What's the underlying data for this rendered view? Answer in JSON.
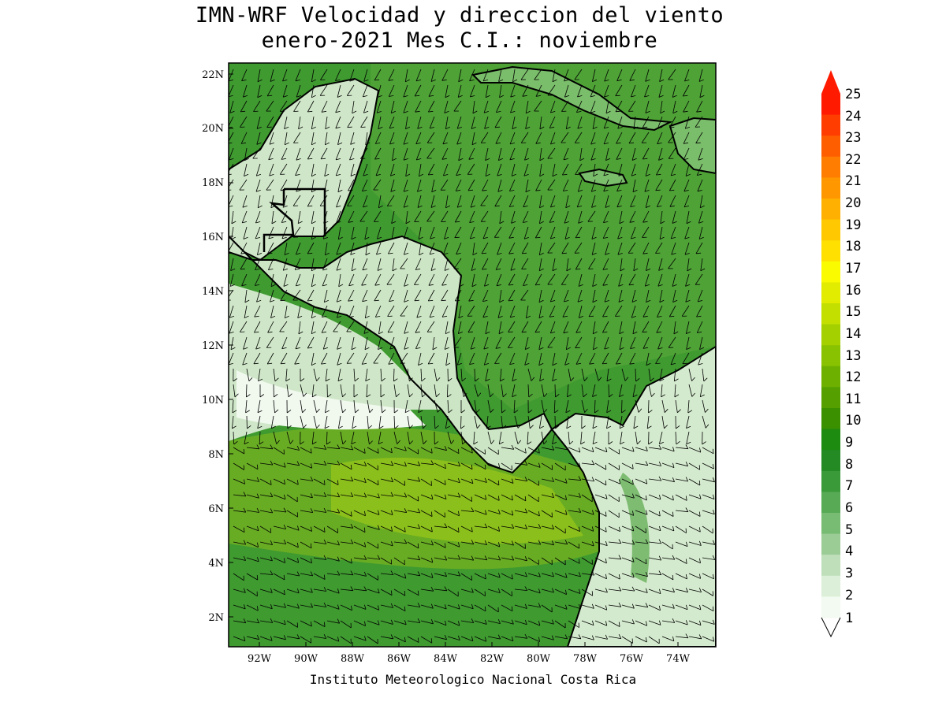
{
  "title_line1": "IMN-WRF Velocidad y direccion del viento",
  "title_line2": "enero-2021 Mes C.I.: noviembre",
  "credit": "Instituto Meteorologico Nacional Costa Rica",
  "map": {
    "lat_ticks": [
      "22N",
      "20N",
      "18N",
      "16N",
      "14N",
      "12N",
      "10N",
      "8N",
      "6N",
      "4N",
      "2N"
    ],
    "lon_ticks": [
      "92W",
      "90W",
      "88W",
      "86W",
      "84W",
      "82W",
      "80W",
      "78W",
      "76W",
      "74W"
    ],
    "colors": {
      "land": "#d8ecd3",
      "sea_strong": "#3fa033",
      "caribbean": "#52a83c"
    }
  },
  "legend": {
    "labels": [
      "25",
      "24",
      "23",
      "22",
      "21",
      "20",
      "19",
      "18",
      "17",
      "16",
      "15",
      "14",
      "13",
      "12",
      "11",
      "10",
      "9",
      "8",
      "7",
      "6",
      "5",
      "4",
      "3",
      "2",
      "1"
    ],
    "colors": [
      "#ff1a00",
      "#ff3d00",
      "#ff5e00",
      "#ff7d00",
      "#ff9800",
      "#ffb000",
      "#ffc800",
      "#ffe000",
      "#fbfb00",
      "#e2ec00",
      "#c2df00",
      "#a4d000",
      "#88c200",
      "#6db000",
      "#55a000",
      "#3b9000",
      "#1d8a10",
      "#248a24",
      "#3a9a3a",
      "#58aa55",
      "#78bb72",
      "#9ccc96",
      "#bfdfba",
      "#dcefd8",
      "#f3faf1"
    ]
  }
}
